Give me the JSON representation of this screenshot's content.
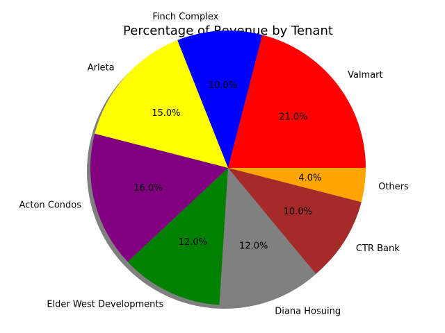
{
  "chart_data": {
    "type": "pie",
    "title": "Percentage of Revenue by Tenant",
    "shadow": true,
    "start_angle_degrees": 0,
    "direction": "counterclockwise",
    "slices": [
      {
        "label": "Valmart",
        "value": 21.0,
        "pct_label": "21.0%",
        "color": "#ff0000"
      },
      {
        "label": "Finch Complex",
        "value": 10.0,
        "pct_label": "10.0%",
        "color": "#0000ff"
      },
      {
        "label": "Arleta",
        "value": 15.0,
        "pct_label": "15.0%",
        "color": "#ffff00"
      },
      {
        "label": "Acton Condos",
        "value": 16.0,
        "pct_label": "16.0%",
        "color": "#800080"
      },
      {
        "label": "Elder West Developments",
        "value": 12.0,
        "pct_label": "12.0%",
        "color": "#008000"
      },
      {
        "label": "Diana Hosuing",
        "value": 12.0,
        "pct_label": "12.0%",
        "color": "#808080"
      },
      {
        "label": "CTR Bank",
        "value": 10.0,
        "pct_label": "10.0%",
        "color": "#a52a2a"
      },
      {
        "label": "Others",
        "value": 4.0,
        "pct_label": "4.0%",
        "color": "#ffa500"
      }
    ]
  }
}
